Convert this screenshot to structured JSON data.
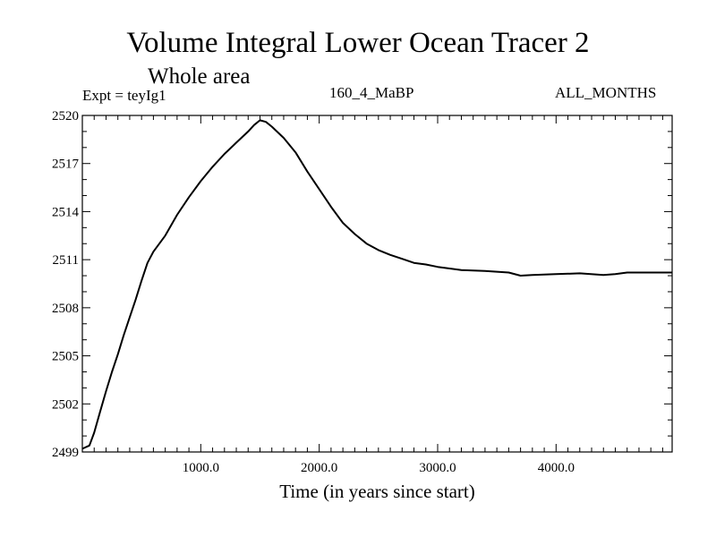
{
  "chart_data": {
    "type": "line",
    "title": "Volume Integral Lower Ocean Tracer 2",
    "subtitle": "Whole area",
    "annotations": {
      "experiment": "Expt = teyIg1",
      "period": "160_4_MaBP",
      "months": "ALL_MONTHS"
    },
    "xlabel": "Time (in years since start)",
    "ylabel": "",
    "xlim": [
      0,
      4980
    ],
    "ylim": [
      2499,
      2520
    ],
    "x_ticks": [
      1000,
      2000,
      3000,
      4000
    ],
    "x_tick_labels": [
      "1000.0",
      "2000.0",
      "3000.0",
      "4000.0"
    ],
    "y_ticks": [
      2499,
      2502,
      2505,
      2508,
      2511,
      2514,
      2517,
      2520
    ],
    "y_tick_labels": [
      "2499",
      "2502",
      "2505",
      "2508",
      "2511",
      "2514",
      "2517",
      "2520"
    ],
    "series": [
      {
        "name": "Volume Integral Lower Ocean Tracer 2",
        "x": [
          0,
          60,
          100,
          150,
          200,
          250,
          300,
          350,
          400,
          450,
          500,
          550,
          600,
          700,
          800,
          900,
          1000,
          1100,
          1200,
          1300,
          1400,
          1450,
          1500,
          1550,
          1600,
          1700,
          1800,
          1900,
          2000,
          2100,
          2200,
          2300,
          2400,
          2500,
          2600,
          2700,
          2800,
          2900,
          3000,
          3200,
          3400,
          3600,
          3700,
          3800,
          4000,
          4200,
          4400,
          4500,
          4600,
          4800,
          4980
        ],
        "values": [
          2499.2,
          2499.4,
          2500.2,
          2501.5,
          2502.8,
          2504.0,
          2505.1,
          2506.3,
          2507.4,
          2508.5,
          2509.7,
          2510.8,
          2511.5,
          2512.5,
          2513.8,
          2514.9,
          2515.9,
          2516.8,
          2517.6,
          2518.3,
          2519.0,
          2519.4,
          2519.7,
          2519.6,
          2519.3,
          2518.6,
          2517.7,
          2516.5,
          2515.4,
          2514.3,
          2513.3,
          2512.6,
          2512.0,
          2511.6,
          2511.3,
          2511.05,
          2510.8,
          2510.7,
          2510.55,
          2510.35,
          2510.3,
          2510.2,
          2510.0,
          2510.05,
          2510.1,
          2510.15,
          2510.05,
          2510.1,
          2510.2,
          2510.2,
          2510.2
        ]
      }
    ]
  }
}
